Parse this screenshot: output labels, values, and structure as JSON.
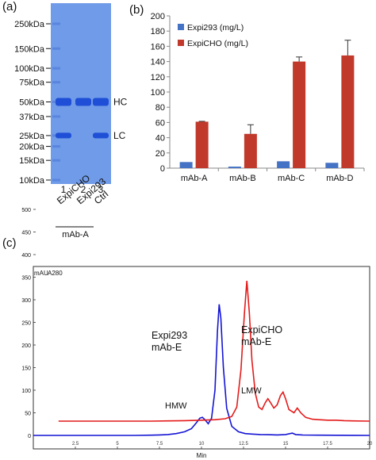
{
  "panels": {
    "a": "(a)",
    "b": "(b)",
    "c": "(c)"
  },
  "gel": {
    "markers": [
      {
        "label": "250kDa",
        "kda": 250
      },
      {
        "label": "150kDa",
        "kda": 150
      },
      {
        "label": "100kDa",
        "kda": 100
      },
      {
        "label": "75kDa",
        "kda": 75
      },
      {
        "label": "50kDa",
        "kda": 50
      },
      {
        "label": "37kDa",
        "kda": 37
      },
      {
        "label": "25kDa",
        "kda": 25
      },
      {
        "label": "20kDa",
        "kda": 20
      },
      {
        "label": "15kDa",
        "kda": 15
      },
      {
        "label": "10kDa",
        "kda": 10
      }
    ],
    "lanes": [
      {
        "number": "1",
        "name": "ExpiCHO",
        "bands": [
          "HC",
          "LC"
        ]
      },
      {
        "number": "2",
        "name": "Expi293",
        "bands": [
          "HC"
        ]
      },
      {
        "number": "3",
        "name": "Ctrl",
        "bands": [
          "HC",
          "LC"
        ]
      }
    ],
    "band_labels": [
      {
        "label": "HC",
        "kda": 50
      },
      {
        "label": "LC",
        "kda": 25
      }
    ],
    "group_label": "mAb-A",
    "colors": {
      "gel": "#6f9be8",
      "band": "#1f4fd6",
      "marker": "#5a85df"
    }
  },
  "chart_data": [
    {
      "type": "bar",
      "categories": [
        "mAb-A",
        "mAb-B",
        "mAb-C",
        "mAb-D"
      ],
      "series": [
        {
          "name": "Expi293 (mg/L)",
          "values": [
            8,
            2,
            9,
            7
          ],
          "errors": [
            0,
            0,
            0,
            0
          ],
          "color": "#4472c4"
        },
        {
          "name": "ExpiCHO (mg/L)",
          "values": [
            61,
            45,
            140,
            148
          ],
          "errors": [
            0.5,
            12,
            6,
            20
          ],
          "color": "#c0392b"
        }
      ],
      "yticks": [
        0,
        20,
        40,
        60,
        80,
        100,
        120,
        140,
        160,
        180,
        200
      ],
      "ylim": [
        0,
        200
      ],
      "legend_position": "top-left",
      "grid": false
    },
    {
      "type": "line",
      "y_unit_label": "mAU",
      "detector_label": "A280",
      "xlabel": "Min",
      "xlim": [
        0,
        20
      ],
      "xticks": [
        {
          "value": 2.5,
          "label": "2.5"
        },
        {
          "value": 5,
          "label": "5"
        },
        {
          "value": 7.5,
          "label": "7.5"
        },
        {
          "value": 10,
          "label": "10"
        },
        {
          "value": 12.5,
          "label": "12.5"
        },
        {
          "value": 15,
          "label": "15"
        },
        {
          "value": 17.5,
          "label": "17.5"
        },
        {
          "value": 20,
          "label": "20"
        }
      ],
      "ylim": [
        -5,
        550
      ],
      "yticks": [
        0,
        50,
        100,
        150,
        200,
        250,
        300,
        350,
        400,
        450,
        500
      ],
      "series": [
        {
          "name": "Expi293 mAb-E",
          "color": "#1414d4",
          "points": [
            [
              0,
              0
            ],
            [
              1,
              0
            ],
            [
              2,
              0
            ],
            [
              3,
              0
            ],
            [
              4,
              0
            ],
            [
              5,
              0
            ],
            [
              6,
              0
            ],
            [
              7,
              0.5
            ],
            [
              7.5,
              1
            ],
            [
              8,
              2
            ],
            [
              8.5,
              4
            ],
            [
              9,
              8
            ],
            [
              9.4,
              15
            ],
            [
              9.7,
              28
            ],
            [
              9.9,
              38
            ],
            [
              10.05,
              40
            ],
            [
              10.2,
              35
            ],
            [
              10.4,
              26
            ],
            [
              10.6,
              38
            ],
            [
              10.8,
              100
            ],
            [
              10.95,
              230
            ],
            [
              11.05,
              290
            ],
            [
              11.15,
              260
            ],
            [
              11.3,
              150
            ],
            [
              11.5,
              60
            ],
            [
              11.8,
              20
            ],
            [
              12.2,
              8
            ],
            [
              12.6,
              4
            ],
            [
              13,
              3
            ],
            [
              13.5,
              2
            ],
            [
              14,
              1.5
            ],
            [
              14.5,
              1
            ],
            [
              15,
              2
            ],
            [
              15.4,
              5
            ],
            [
              15.6,
              2
            ],
            [
              16,
              1
            ],
            [
              17,
              0.5
            ],
            [
              18,
              0.3
            ],
            [
              19,
              0.2
            ],
            [
              20,
              0
            ]
          ]
        },
        {
          "name": "ExpiCHO mAb-E",
          "color": "#e41a1a",
          "points": [
            [
              1.5,
              0
            ],
            [
              3,
              0
            ],
            [
              5,
              0
            ],
            [
              7,
              0
            ],
            [
              8,
              0.5
            ],
            [
              9,
              1
            ],
            [
              10,
              2
            ],
            [
              10.8,
              3
            ],
            [
              11.4,
              5
            ],
            [
              11.8,
              10
            ],
            [
              12.1,
              30
            ],
            [
              12.35,
              110
            ],
            [
              12.55,
              230
            ],
            [
              12.7,
              300
            ],
            [
              12.85,
              230
            ],
            [
              13,
              130
            ],
            [
              13.2,
              60
            ],
            [
              13.4,
              30
            ],
            [
              13.6,
              25
            ],
            [
              13.8,
              40
            ],
            [
              13.95,
              48
            ],
            [
              14.1,
              40
            ],
            [
              14.3,
              28
            ],
            [
              14.5,
              35
            ],
            [
              14.7,
              55
            ],
            [
              14.85,
              62
            ],
            [
              15.0,
              48
            ],
            [
              15.2,
              25
            ],
            [
              15.5,
              18
            ],
            [
              15.7,
              28
            ],
            [
              15.9,
              18
            ],
            [
              16.2,
              8
            ],
            [
              16.6,
              4
            ],
            [
              17,
              3
            ],
            [
              17.5,
              2
            ],
            [
              18,
              2
            ],
            [
              18.5,
              1
            ],
            [
              19,
              0.5
            ],
            [
              20,
              0
            ]
          ]
        }
      ],
      "annotations": [
        {
          "lines": [
            "Expi293",
            "mAb-E"
          ],
          "series": "Expi293 mAb-E"
        },
        {
          "lines": [
            "ExpiCHO",
            "mAb-E"
          ],
          "series": "ExpiCHO mAb-E"
        },
        {
          "lines": [
            "HMW"
          ],
          "series": "Expi293 mAb-E"
        },
        {
          "lines": [
            "LMW"
          ],
          "series": "ExpiCHO mAb-E"
        }
      ]
    }
  ]
}
